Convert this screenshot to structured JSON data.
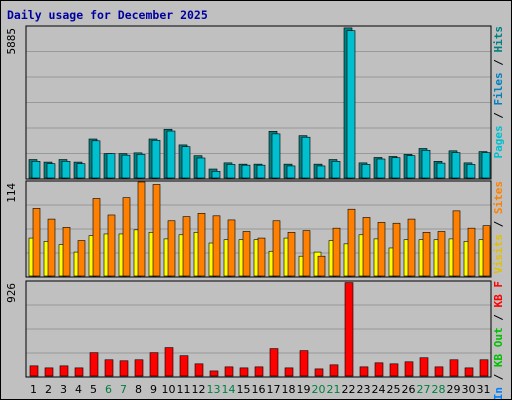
{
  "title": "Daily usage for December 2025",
  "colors": {
    "pages": "#00c0d0",
    "pages_dark": "#008080",
    "files": "#0080c0",
    "hits": "#008080",
    "visits": "#ffff00",
    "sites": "#ff8000",
    "kb_in": "#0080ff",
    "kb_out": "#00c000",
    "kbf": "#ff0000",
    "weekend_day": "#008040",
    "weekday": "#000000"
  },
  "side_labels": {
    "top": [
      {
        "text": "Pages",
        "color": "#00c0d0"
      },
      {
        "text": " / ",
        "color": "#000000"
      },
      {
        "text": "Files",
        "color": "#0080c0"
      },
      {
        "text": " / ",
        "color": "#000000"
      },
      {
        "text": "Hits",
        "color": "#008080"
      }
    ],
    "mid": [
      {
        "text": "Visits",
        "color": "#e0c000"
      },
      {
        "text": " / ",
        "color": "#000000"
      },
      {
        "text": "Sites",
        "color": "#ff8000"
      }
    ],
    "bot": [
      {
        "text": "KB In",
        "color": "#0080ff"
      },
      {
        "text": " / ",
        "color": "#000000"
      },
      {
        "text": "KB Out",
        "color": "#00c000"
      },
      {
        "text": " / ",
        "color": "#000000"
      },
      {
        "text": "KB F",
        "color": "#ff0000"
      }
    ]
  },
  "chart_data": [
    {
      "type": "bar",
      "name": "Hits / Files",
      "ymax_label": "5885",
      "ylim": [
        0,
        5885
      ],
      "categories": [
        "1",
        "2",
        "3",
        "4",
        "5",
        "6",
        "7",
        "8",
        "9",
        "10",
        "11",
        "12",
        "13",
        "14",
        "15",
        "16",
        "17",
        "18",
        "19",
        "20",
        "21",
        "22",
        "23",
        "24",
        "25",
        "26",
        "27",
        "28",
        "29",
        "30",
        "31"
      ],
      "series": [
        {
          "name": "Hits",
          "values": [
            720,
            620,
            720,
            620,
            1520,
            950,
            950,
            980,
            1520,
            1900,
            1290,
            870,
            350,
            590,
            540,
            540,
            1820,
            540,
            1650,
            540,
            720,
            5850,
            590,
            800,
            840,
            920,
            1150,
            650,
            1060,
            590,
            1030
          ]
        },
        {
          "name": "Files",
          "values": [
            650,
            560,
            650,
            560,
            1450,
            950,
            890,
            920,
            1470,
            1830,
            1220,
            780,
            260,
            530,
            500,
            500,
            1720,
            470,
            1590,
            470,
            650,
            5740,
            530,
            740,
            790,
            870,
            1080,
            580,
            990,
            530,
            990
          ]
        }
      ]
    },
    {
      "type": "bar",
      "name": "Sites / Visits",
      "ymax_label": "114",
      "ylim": [
        0,
        114
      ],
      "categories": [
        "1",
        "2",
        "3",
        "4",
        "5",
        "6",
        "7",
        "8",
        "9",
        "10",
        "11",
        "12",
        "13",
        "14",
        "15",
        "16",
        "17",
        "18",
        "19",
        "20",
        "21",
        "22",
        "23",
        "24",
        "25",
        "26",
        "27",
        "28",
        "29",
        "30",
        "31"
      ],
      "series": [
        {
          "name": "Sites",
          "values": [
            82,
            69,
            59,
            43,
            94,
            74,
            95,
            115,
            111,
            67,
            72,
            76,
            73,
            68,
            54,
            46,
            67,
            53,
            55,
            24,
            58,
            81,
            71,
            65,
            64,
            69,
            53,
            54,
            79,
            58,
            61
          ]
        },
        {
          "name": "Visits",
          "values": [
            46,
            42,
            38,
            29,
            49,
            51,
            51,
            56,
            53,
            45,
            50,
            53,
            40,
            44,
            44,
            44,
            30,
            46,
            24,
            29,
            43,
            39,
            50,
            45,
            34,
            44,
            44,
            44,
            45,
            42,
            44
          ]
        }
      ]
    },
    {
      "type": "bar",
      "name": "KB F",
      "ymax_label": "926",
      "ylim": [
        0,
        926
      ],
      "categories": [
        "1",
        "2",
        "3",
        "4",
        "5",
        "6",
        "7",
        "8",
        "9",
        "10",
        "11",
        "12",
        "13",
        "14",
        "15",
        "16",
        "17",
        "18",
        "19",
        "20",
        "21",
        "22",
        "23",
        "24",
        "25",
        "26",
        "27",
        "28",
        "29",
        "30",
        "31"
      ],
      "series": [
        {
          "name": "KB F",
          "values": [
            100,
            80,
            100,
            80,
            230,
            160,
            150,
            160,
            230,
            280,
            200,
            120,
            50,
            90,
            80,
            90,
            270,
            80,
            250,
            70,
            110,
            920,
            90,
            130,
            120,
            140,
            180,
            90,
            160,
            80,
            160
          ]
        }
      ]
    }
  ],
  "days": [
    {
      "label": "1",
      "weekend": false
    },
    {
      "label": "2",
      "weekend": false
    },
    {
      "label": "3",
      "weekend": false
    },
    {
      "label": "4",
      "weekend": false
    },
    {
      "label": "5",
      "weekend": false
    },
    {
      "label": "6",
      "weekend": true
    },
    {
      "label": "7",
      "weekend": true
    },
    {
      "label": "8",
      "weekend": false
    },
    {
      "label": "9",
      "weekend": false
    },
    {
      "label": "10",
      "weekend": false
    },
    {
      "label": "11",
      "weekend": false
    },
    {
      "label": "12",
      "weekend": false
    },
    {
      "label": "13",
      "weekend": true
    },
    {
      "label": "14",
      "weekend": true
    },
    {
      "label": "15",
      "weekend": false
    },
    {
      "label": "16",
      "weekend": false
    },
    {
      "label": "17",
      "weekend": false
    },
    {
      "label": "18",
      "weekend": false
    },
    {
      "label": "19",
      "weekend": false
    },
    {
      "label": "20",
      "weekend": true
    },
    {
      "label": "21",
      "weekend": true
    },
    {
      "label": "22",
      "weekend": false
    },
    {
      "label": "23",
      "weekend": false
    },
    {
      "label": "24",
      "weekend": false
    },
    {
      "label": "25",
      "weekend": false
    },
    {
      "label": "26",
      "weekend": false
    },
    {
      "label": "27",
      "weekend": true
    },
    {
      "label": "28",
      "weekend": true
    },
    {
      "label": "29",
      "weekend": false
    },
    {
      "label": "30",
      "weekend": false
    },
    {
      "label": "31",
      "weekend": false
    }
  ]
}
